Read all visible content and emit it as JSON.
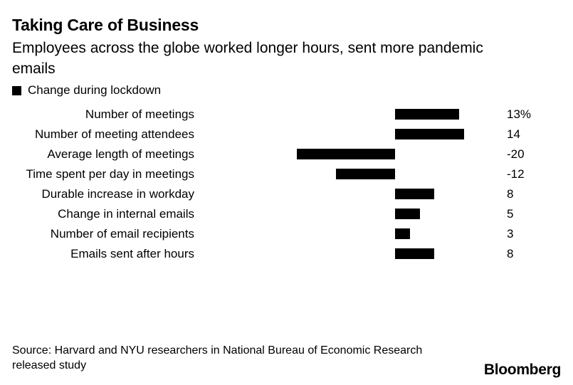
{
  "header": {
    "title": "Taking Care of Business",
    "subtitle": "Employees across the globe worked longer hours, sent more pandemic\nemails"
  },
  "legend": {
    "label": "Change during lockdown",
    "swatch_color": "#000000"
  },
  "chart_data": {
    "type": "bar",
    "orientation": "horizontal",
    "title": "Taking Care of Business",
    "subtitle": "Employees across the globe worked longer hours, sent more pandemic emails",
    "legend": "Change during lockdown",
    "legend_position": "top-left",
    "unit": "percent",
    "categories": [
      "Number of meetings",
      "Number of meeting attendees",
      "Average length of meetings",
      "Time spent per day in meetings",
      "Durable increase in workday",
      "Change in internal emails",
      "Number of email recipients",
      "Emails sent after hours"
    ],
    "values": [
      13,
      14,
      -20,
      -12,
      8,
      5,
      3,
      8
    ],
    "value_labels": [
      "13%",
      "14",
      "-20",
      "-12",
      "8",
      "5",
      "3",
      "8"
    ],
    "xlim": [
      -20,
      14
    ],
    "bar_color": "#000000",
    "grid": false
  },
  "footer": {
    "source": "Source: Harvard and NYU researchers in National Bureau of Economic Research\nreleased study",
    "brand": "Bloomberg"
  }
}
